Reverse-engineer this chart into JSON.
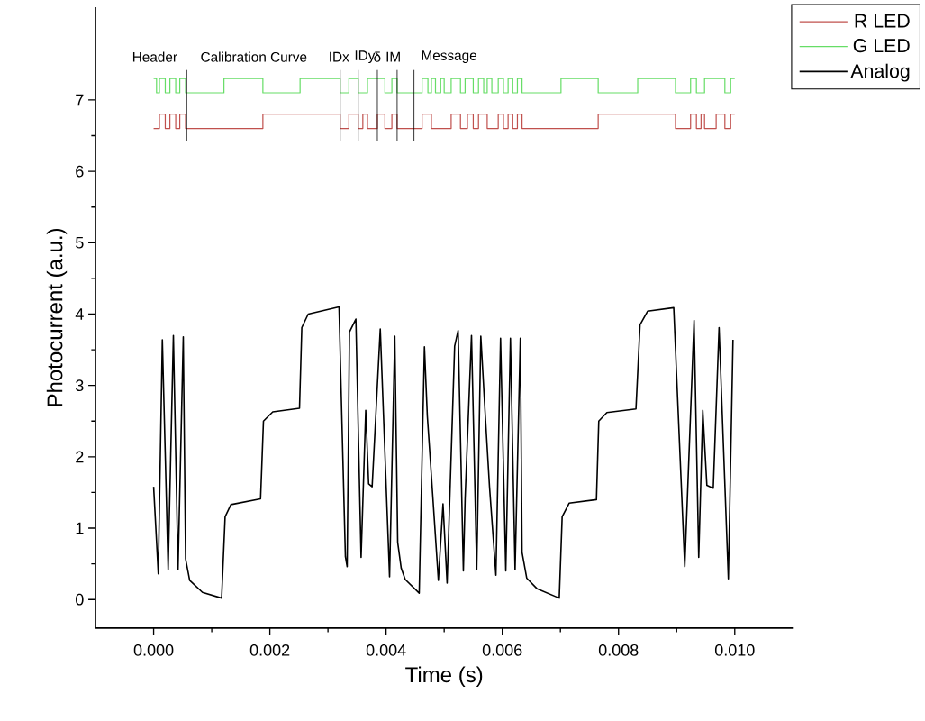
{
  "chart_data": {
    "type": "line",
    "xlabel": "Time (s)",
    "ylabel": "Photocurrent (a.u.)",
    "xlim": [
      -0.001,
      0.011
    ],
    "ylim": [
      -0.4,
      8.3
    ],
    "xticks": [
      {
        "value": 0,
        "label": "0.000"
      },
      {
        "value": 0.002,
        "label": "0.002"
      },
      {
        "value": 0.004,
        "label": "0.004"
      },
      {
        "value": 0.006,
        "label": "0.006"
      },
      {
        "value": 0.008,
        "label": "0.008"
      },
      {
        "value": 0.01,
        "label": "0.010"
      }
    ],
    "yticks": [
      0,
      1,
      2,
      3,
      4,
      5,
      6,
      7
    ],
    "legend": "top right",
    "series": [
      {
        "name": "R LED",
        "type": "step",
        "color": "#c0504d",
        "x": [
          0,
          0.0001,
          0.0002,
          0.00028,
          0.00038,
          0.00045,
          0.00055,
          0.00188,
          0.00321,
          0.00336,
          0.00352,
          0.0036,
          0.00368,
          0.00385,
          0.00398,
          0.0041,
          0.00419,
          0.00462,
          0.00478,
          0.00512,
          0.00528,
          0.0054,
          0.0055,
          0.00559,
          0.00574,
          0.00593,
          0.00602,
          0.0061,
          0.00618,
          0.00626,
          0.00634,
          0.00765,
          0.00898,
          0.00924,
          0.00934,
          0.00942,
          0.00948,
          0.00968,
          0.00983,
          0.00993,
          0.01
        ],
        "values": [
          6.6,
          6.8,
          6.6,
          6.8,
          6.6,
          6.8,
          6.6,
          6.8,
          6.6,
          6.8,
          6.6,
          6.8,
          6.6,
          6.8,
          6.6,
          6.8,
          6.6,
          6.8,
          6.6,
          6.8,
          6.6,
          6.8,
          6.6,
          6.8,
          6.6,
          6.8,
          6.6,
          6.8,
          6.6,
          6.8,
          6.6,
          6.8,
          6.6,
          6.8,
          6.6,
          6.8,
          6.6,
          6.8,
          6.6,
          6.8,
          6.8
        ]
      },
      {
        "name": "G LED",
        "type": "step",
        "color": "#66dd66",
        "x": [
          0,
          5e-05,
          0.0001,
          0.0002,
          0.00028,
          0.00038,
          0.00045,
          0.00055,
          0.00121,
          0.00188,
          0.00252,
          0.00321,
          0.00336,
          0.00352,
          0.00368,
          0.00398,
          0.0041,
          0.00419,
          0.00462,
          0.00472,
          0.00478,
          0.00485,
          0.00494,
          0.005,
          0.00512,
          0.00528,
          0.00536,
          0.0055,
          0.00559,
          0.00568,
          0.00574,
          0.00582,
          0.00593,
          0.00602,
          0.0061,
          0.00618,
          0.00626,
          0.00634,
          0.00701,
          0.00765,
          0.00833,
          0.00898,
          0.00924,
          0.00934,
          0.00948,
          0.00983,
          0.00993,
          0.01
        ],
        "values": [
          7.3,
          7.1,
          7.3,
          7.1,
          7.3,
          7.1,
          7.3,
          7.1,
          7.3,
          7.1,
          7.3,
          7.1,
          7.3,
          7.1,
          7.3,
          7.1,
          7.3,
          7.1,
          7.3,
          7.1,
          7.3,
          7.1,
          7.3,
          7.1,
          7.3,
          7.1,
          7.3,
          7.1,
          7.3,
          7.1,
          7.3,
          7.1,
          7.3,
          7.1,
          7.3,
          7.1,
          7.3,
          7.1,
          7.3,
          7.1,
          7.3,
          7.1,
          7.3,
          7.1,
          7.3,
          7.1,
          7.3,
          7.3
        ]
      },
      {
        "name": "Analog",
        "color": "#000000",
        "x": [
          0,
          8e-05,
          0.00015,
          0.00025,
          0.00034,
          0.00042,
          0.00051,
          0.00055,
          0.00062,
          0.00084,
          0.00117,
          0.00123,
          0.00133,
          0.00184,
          0.00189,
          0.00205,
          0.00251,
          0.00255,
          0.00266,
          0.00319,
          0.0033,
          0.00333,
          0.00337,
          0.00348,
          0.00357,
          0.00365,
          0.0037,
          0.00376,
          0.0039,
          0.00406,
          0.00415,
          0.0042,
          0.00426,
          0.00433,
          0.00457,
          0.00466,
          0.00471,
          0.0048,
          0.0049,
          0.00498,
          0.00505,
          0.00518,
          0.00524,
          0.00533,
          0.00536,
          0.00547,
          0.00556,
          0.00563,
          0.0057,
          0.00578,
          0.00589,
          0.00597,
          0.00606,
          0.00614,
          0.00622,
          0.00631,
          0.00634,
          0.00642,
          0.0066,
          0.00698,
          0.00703,
          0.00715,
          0.00762,
          0.00766,
          0.0078,
          0.0083,
          0.00837,
          0.0085,
          0.00895,
          0.00914,
          0.0093,
          0.00938,
          0.00945,
          0.00952,
          0.00963,
          0.00973,
          0.00989,
          0.00997
        ],
        "values": [
          1.58,
          0.36,
          3.64,
          0.42,
          3.7,
          0.42,
          3.68,
          0.57,
          0.27,
          0.1,
          0.02,
          1.16,
          1.33,
          1.41,
          2.5,
          2.63,
          2.68,
          3.81,
          4.0,
          4.1,
          0.6,
          0.46,
          3.75,
          3.93,
          0.59,
          2.65,
          1.62,
          1.58,
          3.79,
          0.32,
          3.69,
          0.8,
          0.44,
          0.28,
          0.09,
          3.54,
          2.57,
          1.49,
          0.27,
          1.34,
          0.23,
          3.55,
          3.77,
          0.4,
          1.41,
          3.7,
          0.42,
          3.69,
          2.68,
          1.58,
          0.34,
          3.66,
          0.4,
          3.66,
          0.42,
          3.66,
          0.66,
          0.3,
          0.15,
          0.02,
          1.16,
          1.35,
          1.4,
          2.5,
          2.62,
          2.67,
          3.85,
          4.04,
          4.09,
          0.46,
          3.91,
          0.59,
          2.65,
          1.6,
          1.56,
          3.81,
          0.29,
          3.64
        ]
      }
    ],
    "ref_lines": [
      {
        "axis": "x",
        "value": 0.00057,
        "color": "#000000"
      },
      {
        "axis": "x",
        "value": 0.00321,
        "color": "#000000"
      },
      {
        "axis": "x",
        "value": 0.00352,
        "color": "#000000"
      },
      {
        "axis": "x",
        "value": 0.00385,
        "color": "#000000"
      },
      {
        "axis": "x",
        "value": 0.00419,
        "color": "#000000"
      },
      {
        "axis": "x",
        "value": 0.00448,
        "color": "#000000"
      }
    ],
    "annotations": [
      "Header",
      "Calibration Curve",
      "IDx",
      "IDy",
      "δ",
      "IM",
      "Message"
    ]
  }
}
